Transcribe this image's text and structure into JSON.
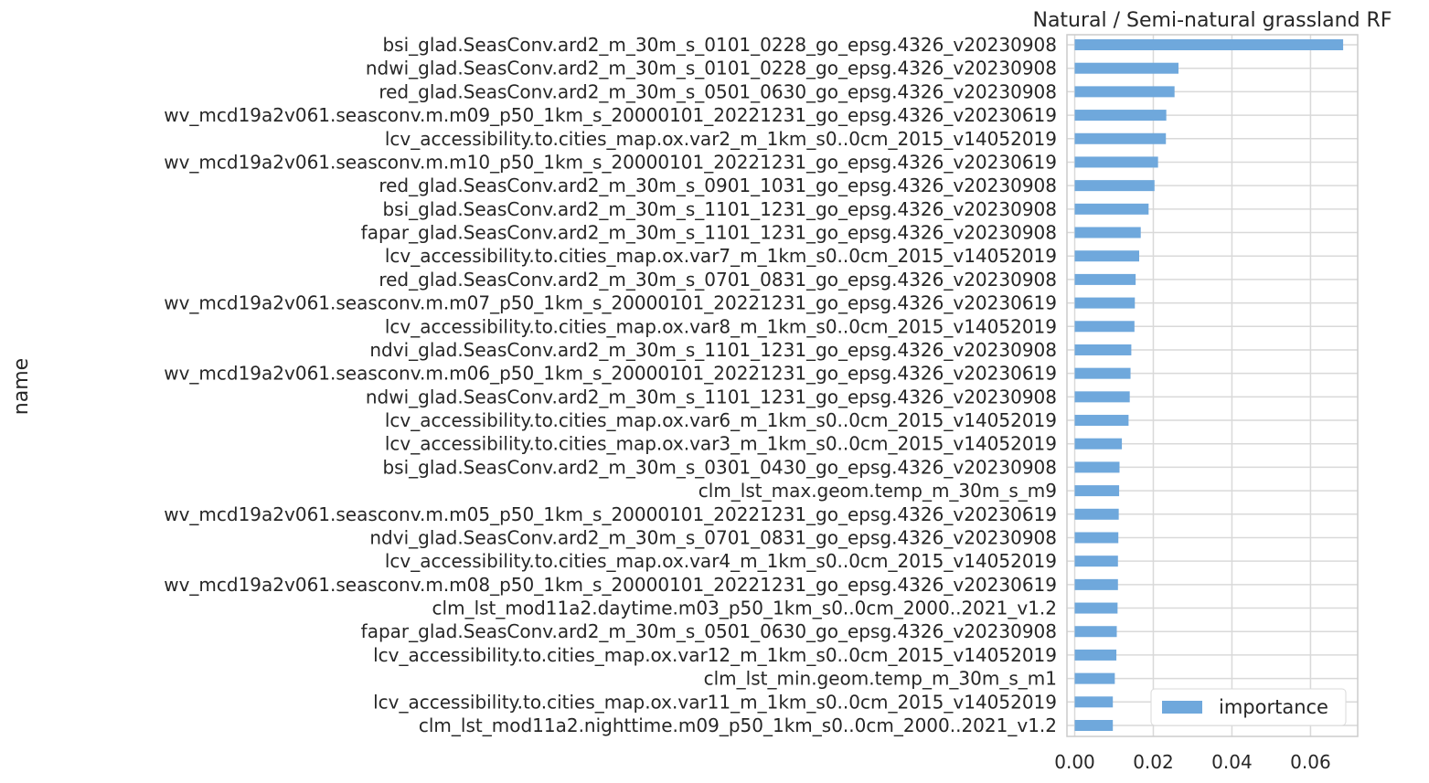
{
  "chart_data": {
    "type": "bar",
    "orientation": "horizontal",
    "title": "Natural / Semi-natural grassland RF",
    "ylabel": "name",
    "xlabel": "",
    "xlim": [
      0,
      0.072
    ],
    "xticks": [
      0.0,
      0.02,
      0.04,
      0.06
    ],
    "xtick_labels": [
      "0.00",
      "0.02",
      "0.04",
      "0.06"
    ],
    "grid": true,
    "legend": {
      "placement": "lower-right",
      "entries": [
        "importance"
      ]
    },
    "colors": {
      "bar": "#6fa8dc",
      "grid": "#d9d9d9",
      "spine": "#cccccc"
    },
    "categories": [
      "bsi_glad.SeasConv.ard2_m_30m_s_0101_0228_go_epsg.4326_v20230908",
      "ndwi_glad.SeasConv.ard2_m_30m_s_0101_0228_go_epsg.4326_v20230908",
      "red_glad.SeasConv.ard2_m_30m_s_0501_0630_go_epsg.4326_v20230908",
      "wv_mcd19a2v061.seasconv.m.m09_p50_1km_s_20000101_20221231_go_epsg.4326_v20230619",
      "lcv_accessibility.to.cities_map.ox.var2_m_1km_s0..0cm_2015_v14052019",
      "wv_mcd19a2v061.seasconv.m.m10_p50_1km_s_20000101_20221231_go_epsg.4326_v20230619",
      "red_glad.SeasConv.ard2_m_30m_s_0901_1031_go_epsg.4326_v20230908",
      "bsi_glad.SeasConv.ard2_m_30m_s_1101_1231_go_epsg.4326_v20230908",
      "fapar_glad.SeasConv.ard2_m_30m_s_1101_1231_go_epsg.4326_v20230908",
      "lcv_accessibility.to.cities_map.ox.var7_m_1km_s0..0cm_2015_v14052019",
      "red_glad.SeasConv.ard2_m_30m_s_0701_0831_go_epsg.4326_v20230908",
      "wv_mcd19a2v061.seasconv.m.m07_p50_1km_s_20000101_20221231_go_epsg.4326_v20230619",
      "lcv_accessibility.to.cities_map.ox.var8_m_1km_s0..0cm_2015_v14052019",
      "ndvi_glad.SeasConv.ard2_m_30m_s_1101_1231_go_epsg.4326_v20230908",
      "wv_mcd19a2v061.seasconv.m.m06_p50_1km_s_20000101_20221231_go_epsg.4326_v20230619",
      "ndwi_glad.SeasConv.ard2_m_30m_s_1101_1231_go_epsg.4326_v20230908",
      "lcv_accessibility.to.cities_map.ox.var6_m_1km_s0..0cm_2015_v14052019",
      "lcv_accessibility.to.cities_map.ox.var3_m_1km_s0..0cm_2015_v14052019",
      "bsi_glad.SeasConv.ard2_m_30m_s_0301_0430_go_epsg.4326_v20230908",
      "clm_lst_max.geom.temp_m_30m_s_m9",
      "wv_mcd19a2v061.seasconv.m.m05_p50_1km_s_20000101_20221231_go_epsg.4326_v20230619",
      "ndvi_glad.SeasConv.ard2_m_30m_s_0701_0831_go_epsg.4326_v20230908",
      "lcv_accessibility.to.cities_map.ox.var4_m_1km_s0..0cm_2015_v14052019",
      "wv_mcd19a2v061.seasconv.m.m08_p50_1km_s_20000101_20221231_go_epsg.4326_v20230619",
      "clm_lst_mod11a2.daytime.m03_p50_1km_s0..0cm_2000..2021_v1.2",
      "fapar_glad.SeasConv.ard2_m_30m_s_0501_0630_go_epsg.4326_v20230908",
      "lcv_accessibility.to.cities_map.ox.var12_m_1km_s0..0cm_2015_v14052019",
      "clm_lst_min.geom.temp_m_30m_s_m1",
      "lcv_accessibility.to.cities_map.ox.var11_m_1km_s0..0cm_2015_v14052019",
      "clm_lst_mod11a2.nighttime.m09_p50_1km_s0..0cm_2000..2021_v1.2"
    ],
    "series": [
      {
        "name": "importance",
        "values": [
          0.0683,
          0.0264,
          0.0254,
          0.0233,
          0.0232,
          0.0212,
          0.0203,
          0.0188,
          0.0168,
          0.0164,
          0.0155,
          0.0153,
          0.0152,
          0.0144,
          0.0142,
          0.014,
          0.0137,
          0.012,
          0.0114,
          0.0113,
          0.0112,
          0.0111,
          0.011,
          0.011,
          0.0109,
          0.0107,
          0.0106,
          0.0102,
          0.0097,
          0.0097
        ]
      }
    ]
  }
}
